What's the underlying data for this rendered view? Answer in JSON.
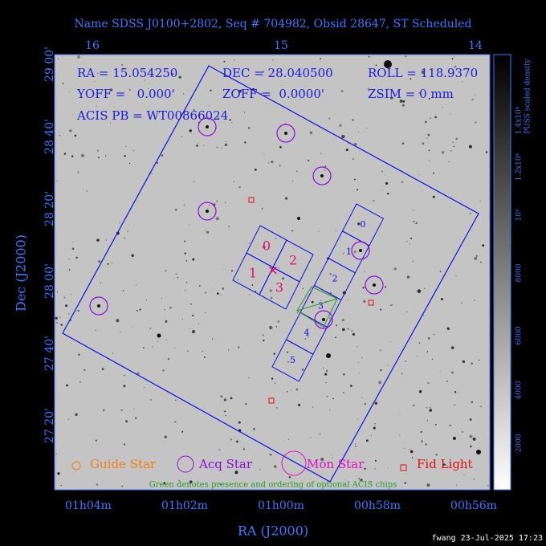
{
  "title": "Name SDSS J0100+2802, Seq # 704982, Obsid 28647, ST Scheduled",
  "info": {
    "row1": [
      "RA = 15.054250",
      "DEC = 28.040500",
      "ROLL = 118.9370"
    ],
    "row2": [
      "YOFF =   0.000'",
      "ZOFF =  0.0000'",
      "ZSIM = 0 mm"
    ],
    "row3": "ACIS PB = WT00866024"
  },
  "top_ticks": [
    "16",
    "15",
    "14"
  ],
  "left_ticks": [
    "29 00'",
    "28 40'",
    "28 20'",
    "28 00'",
    "27 40'",
    "27 20'"
  ],
  "bottom_ticks": [
    "01h04m",
    "01h02m",
    "01h00m",
    "00h58m",
    "00h56m"
  ],
  "x_label": "RA (J2000)",
  "y_label": "Dec (J2000)",
  "acis_i_labels": [
    "0",
    "1",
    "2",
    "3"
  ],
  "acis_s_labels": [
    "0",
    "1",
    "2",
    "3",
    "4",
    "5"
  ],
  "legend": [
    "Guide Star",
    "Acq Star",
    "Mon Star",
    "Fid Light"
  ],
  "note": "Green denotes presence and ordering of optional ACIS chips",
  "colorbar": {
    "title": "PUSS scaled density",
    "labels": [
      "2000",
      "4000",
      "6000",
      "8000",
      "10⁴",
      "1.2x10⁴",
      "1.4x10⁴"
    ]
  },
  "footer": "fwang 23-Jul-2025 17:23"
}
